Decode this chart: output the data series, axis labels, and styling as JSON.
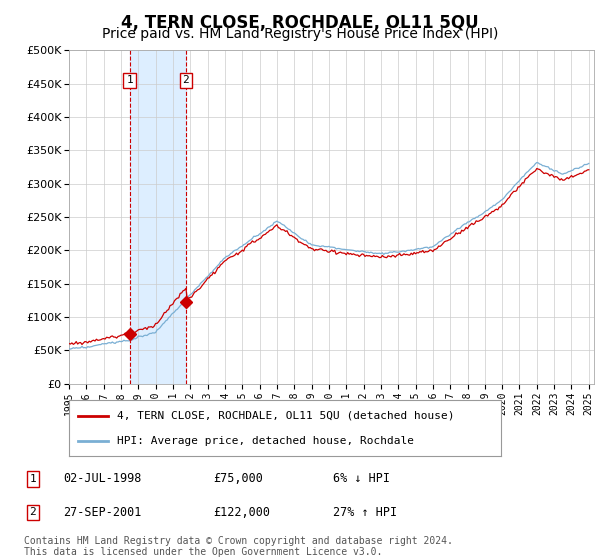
{
  "title": "4, TERN CLOSE, ROCHDALE, OL11 5QU",
  "subtitle": "Price paid vs. HM Land Registry's House Price Index (HPI)",
  "ylim": [
    0,
    500000
  ],
  "yticks": [
    0,
    50000,
    100000,
    150000,
    200000,
    250000,
    300000,
    350000,
    400000,
    450000,
    500000
  ],
  "sale1_date": "02-JUL-1998",
  "sale1_price": 75000,
  "sale1_year": 1998.5,
  "sale1_pct": "6% ↓ HPI",
  "sale2_date": "27-SEP-2001",
  "sale2_price": 122000,
  "sale2_year": 2001.75,
  "sale2_pct": "27% ↑ HPI",
  "line_color_price": "#cc0000",
  "line_color_hpi": "#7aafd4",
  "shade_color": "#ddeeff",
  "marker_color": "#cc0000",
  "vline_color": "#cc0000",
  "legend_label_price": "4, TERN CLOSE, ROCHDALE, OL11 5QU (detached house)",
  "legend_label_hpi": "HPI: Average price, detached house, Rochdale",
  "footnote": "Contains HM Land Registry data © Crown copyright and database right 2024.\nThis data is licensed under the Open Government Licence v3.0.",
  "title_fontsize": 12,
  "subtitle_fontsize": 10,
  "legend_fontsize": 8.5,
  "footnote_fontsize": 7
}
